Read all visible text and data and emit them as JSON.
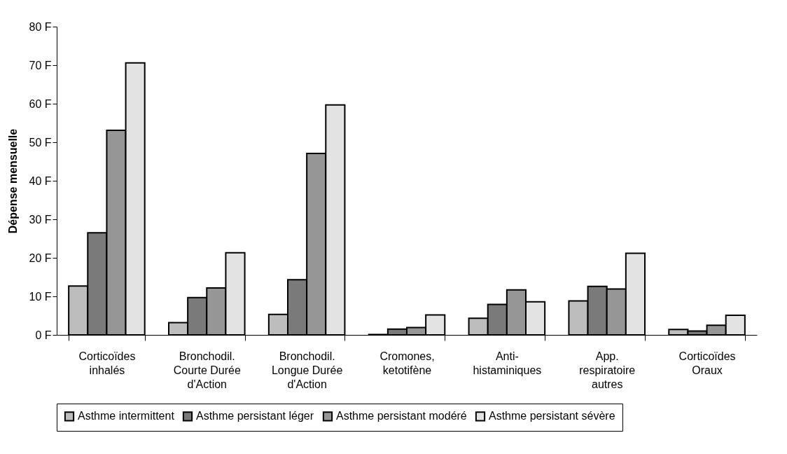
{
  "chart_data": {
    "type": "bar",
    "ylabel": "Dépense mensuelle",
    "categories": [
      "Corticoïdes inhalés",
      "Bronchodil. Courte Durée d'Action",
      "Bronchodil. Longue Durée d'Action",
      "Cromones, ketotifène",
      "Anti-histaminiques",
      "App. respiratoire autres",
      "Corticoïdes Oraux"
    ],
    "series": [
      {
        "name": "Asthme intermittent",
        "color": "#bdbdbd",
        "values": [
          12.7,
          3.2,
          5.3,
          0.1,
          4.3,
          8.8,
          1.4
        ]
      },
      {
        "name": "Asthme persistant léger",
        "color": "#7a7a7a",
        "values": [
          26.5,
          9.7,
          14.3,
          1.5,
          7.9,
          12.6,
          1.0
        ]
      },
      {
        "name": "Asthme persistant modéré",
        "color": "#969696",
        "values": [
          53.1,
          12.2,
          47.1,
          1.9,
          11.7,
          11.9,
          2.5
        ]
      },
      {
        "name": "Asthme persistant sévère",
        "color": "#e3e3e3",
        "values": [
          70.6,
          21.3,
          59.7,
          5.2,
          8.6,
          21.2,
          5.1
        ]
      }
    ],
    "ylim": [
      0,
      80
    ],
    "yticks": [
      {
        "value": 0,
        "label": "0 F"
      },
      {
        "value": 10,
        "label": "10 F"
      },
      {
        "value": 20,
        "label": "20 F"
      },
      {
        "value": 30,
        "label": "30 F"
      },
      {
        "value": 40,
        "label": "40 F"
      },
      {
        "value": 50,
        "label": "50 F"
      },
      {
        "value": 60,
        "label": "60 F"
      },
      {
        "value": 70,
        "label": "70 F"
      },
      {
        "value": 80,
        "label": "80 F"
      }
    ],
    "grid": false,
    "legend": "bottom"
  }
}
